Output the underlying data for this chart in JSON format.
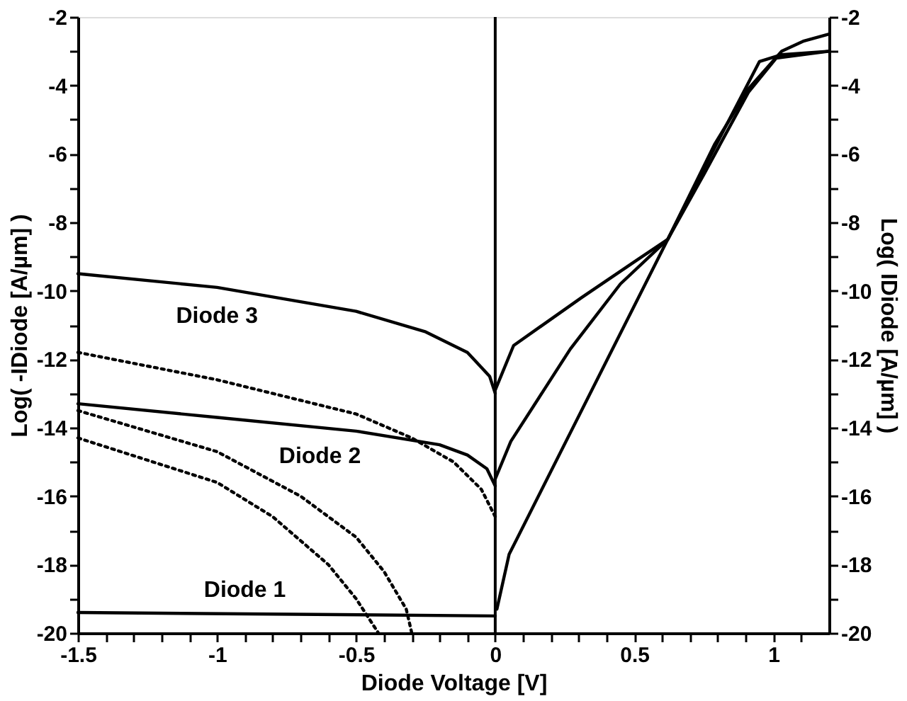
{
  "chart_data": {
    "type": "line",
    "xlabel": "Diode Voltage [V]",
    "ylabel": "Log( -IDiode [A/µm] )",
    "y2label": "Log( IDiode [A/µm] )",
    "xlim": [
      -1.5,
      1.2
    ],
    "xticks": [
      -1.5,
      {
        "value": -1.4,
        "label": null
      },
      {
        "value": -1.3,
        "label": null
      },
      {
        "value": -1.2,
        "label": null
      },
      {
        "value": -1.1,
        "label": null
      },
      -1,
      {
        "value": -0.9,
        "label": null
      },
      {
        "value": -0.8,
        "label": null
      },
      {
        "value": -0.7,
        "label": null
      },
      {
        "value": -0.6,
        "label": null
      },
      -0.5,
      {
        "value": -0.4,
        "label": null
      },
      {
        "value": -0.3,
        "label": null
      },
      {
        "value": -0.2,
        "label": null
      },
      {
        "value": -0.1,
        "label": null
      },
      0,
      {
        "value": 0.1,
        "label": null
      },
      {
        "value": 0.2,
        "label": null
      },
      {
        "value": 0.3,
        "label": null
      },
      {
        "value": 0.4,
        "label": null
      },
      0.5,
      {
        "value": 0.6,
        "label": null
      },
      {
        "value": 0.7,
        "label": null
      },
      {
        "value": 0.8,
        "label": null
      },
      {
        "value": 0.9,
        "label": null
      },
      1,
      {
        "value": 1.1,
        "label": null
      }
    ],
    "ylim": [
      -20,
      -2
    ],
    "yticks": [
      -20,
      {
        "value": -19,
        "label": null
      },
      -18,
      {
        "value": -17,
        "label": null
      },
      -16,
      {
        "value": -15,
        "label": null
      },
      -14,
      {
        "value": -13,
        "label": null
      },
      -12,
      {
        "value": -11,
        "label": null
      },
      -10,
      {
        "value": -9,
        "label": null
      },
      -8,
      {
        "value": -7,
        "label": null
      },
      -6,
      {
        "value": -5,
        "label": null
      },
      -4,
      {
        "value": -3,
        "label": null
      },
      -2
    ],
    "y2lim": [
      -20,
      -2
    ],
    "y2ticks": [
      -20,
      {
        "value": -19,
        "label": null
      },
      -18,
      {
        "value": -17,
        "label": null
      },
      -16,
      {
        "value": -15,
        "label": null
      },
      -14,
      {
        "value": -13,
        "label": null
      },
      -12,
      {
        "value": -11,
        "label": null
      },
      -10,
      {
        "value": -9,
        "label": null
      },
      -8,
      {
        "value": -7,
        "label": null
      },
      -6,
      {
        "value": -5,
        "label": null
      },
      -4,
      {
        "value": -3,
        "label": null
      },
      -2
    ],
    "grid": false,
    "marker": "none",
    "series": [
      {
        "color": "#000000",
        "line_style": "solid",
        "x": [
          -1.5,
          0
        ],
        "values": [
          -19.4,
          -19.5
        ]
      },
      {
        "color": "#000000",
        "line_style": "solid",
        "x": [
          -1.5,
          -1,
          -0.5,
          -0.2,
          -0.1,
          -0.03,
          0
        ],
        "values": [
          -13.3,
          -13.7,
          -14.1,
          -14.5,
          -14.8,
          -15.2,
          -15.7
        ]
      },
      {
        "color": "#000000",
        "line_style": "solid",
        "x": [
          -1.5,
          -1,
          -0.5,
          -0.25,
          -0.1,
          -0.02,
          0
        ],
        "values": [
          -9.5,
          -9.9,
          -10.6,
          -11.2,
          -11.8,
          -12.5,
          -13.0
        ]
      },
      {
        "color": "#000000",
        "line_style": "dotted",
        "x": [
          -1.5,
          -1,
          -0.8,
          -0.6,
          -0.5,
          -0.42
        ],
        "values": [
          -14.3,
          -15.6,
          -16.6,
          -18.0,
          -19.0,
          -20.0
        ]
      },
      {
        "color": "#000000",
        "line_style": "dotted",
        "x": [
          -1.5,
          -1,
          -0.7,
          -0.5,
          -0.4,
          -0.32,
          -0.3
        ],
        "values": [
          -13.5,
          -14.7,
          -16.0,
          -17.2,
          -18.2,
          -19.3,
          -20.0
        ]
      },
      {
        "color": "#000000",
        "line_style": "dotted",
        "x": [
          -1.5,
          -1,
          -0.5,
          -0.3,
          -0.15,
          -0.05,
          0
        ],
        "values": [
          -11.8,
          -12.6,
          -13.6,
          -14.3,
          -15.0,
          -15.8,
          -16.6
        ]
      },
      {
        "color": "#000000",
        "line_style": "solid",
        "axis": "y2",
        "x": [
          0.006,
          0.05,
          0.62,
          0.79,
          0.91,
          1.03,
          1.11,
          1.2
        ],
        "values": [
          -19.3,
          -17.7,
          -8.5,
          -5.7,
          -4.1,
          -3.0,
          -2.7,
          -2.5
        ]
      },
      {
        "color": "#000000",
        "line_style": "solid",
        "axis": "y2",
        "x": [
          0,
          0.056,
          0.27,
          0.45,
          0.62,
          0.79,
          0.95,
          1.03,
          1.2
        ],
        "values": [
          -15.5,
          -14.4,
          -11.7,
          -9.8,
          -8.5,
          -5.8,
          -3.3,
          -3.1,
          -3.0
        ]
      },
      {
        "color": "#000000",
        "line_style": "solid",
        "axis": "y2",
        "x": [
          0,
          0.066,
          0.31,
          0.51,
          0.62,
          0.75,
          0.91,
          1.01,
          1.2
        ],
        "values": [
          -12.9,
          -11.6,
          -10.2,
          -9.1,
          -8.5,
          -6.6,
          -4.2,
          -3.2,
          -3.0
        ]
      }
    ],
    "ref_lines": [
      {
        "axis": "x",
        "value": 0,
        "color": "#000000"
      }
    ],
    "annotations": [
      {
        "text": "Diode 3",
        "x": -1.0,
        "y": -9.9
      },
      {
        "text": "Diode 2",
        "x": -0.63,
        "y": -14.0
      },
      {
        "text": "Diode 1",
        "x": -0.9,
        "y": -19.4
      }
    ]
  }
}
